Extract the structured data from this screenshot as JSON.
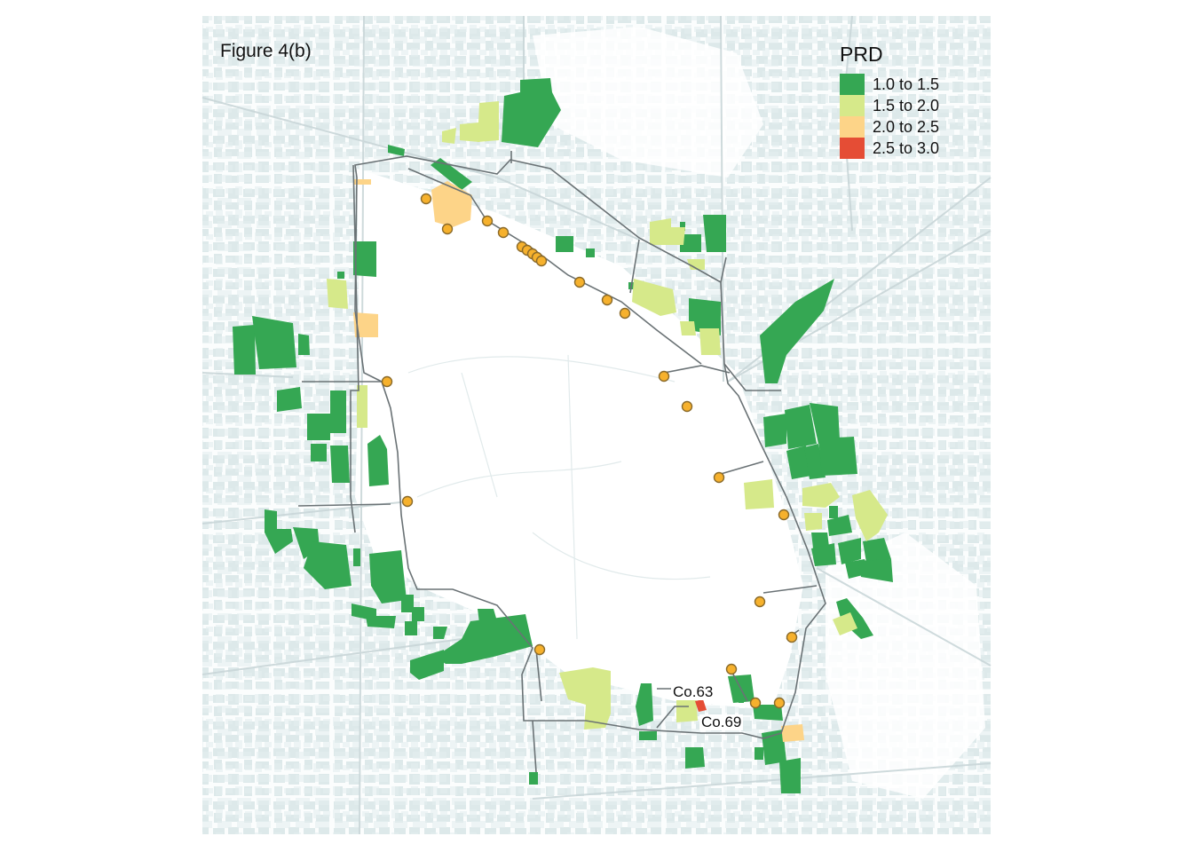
{
  "figure_label": "Figure 4(b)",
  "legend": {
    "title": "PRD",
    "items": [
      {
        "label": "1.0 to 1.5",
        "color": "#35a753"
      },
      {
        "label": "1.5 to 2.0",
        "color": "#d6e98a"
      },
      {
        "label": "2.0 to 2.5",
        "color": "#fdd488"
      },
      {
        "label": "2.5 to 3.0",
        "color": "#e54d35"
      }
    ]
  },
  "callouts": {
    "co63": "Co.63",
    "co69": "Co.69"
  },
  "colors": {
    "basemap_buildings": "#dde9ea",
    "roads": "#c7d3d5",
    "transit_line": "#6a7275",
    "stations": "#f6b12d",
    "station_outline": "#8a6a2a"
  },
  "icons": {
    "station": "transit-station-marker"
  }
}
